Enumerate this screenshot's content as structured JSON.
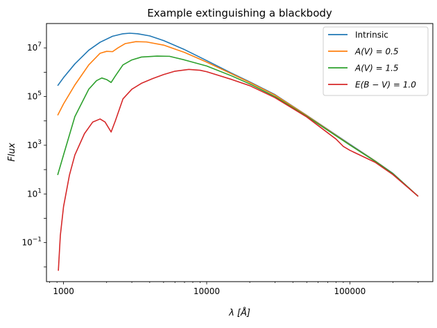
{
  "chart_data": {
    "type": "line",
    "title": "Example extinguishing a blackbody",
    "xlabel": "λ [Å]",
    "ylabel": "Flux",
    "xscale": "log",
    "yscale": "log",
    "xlim": [
      760,
      380000
    ],
    "ylim": [
      0.0025,
      100000000
    ],
    "grid": false,
    "legend_position": "top-right",
    "x_ticks": [
      {
        "value": 1000,
        "label": "1000"
      },
      {
        "value": 10000,
        "label": "10000"
      },
      {
        "value": 100000,
        "label": "100000"
      }
    ],
    "y_ticks": [
      {
        "value": 0.1,
        "base": "10",
        "exp": "−1"
      },
      {
        "value": 10,
        "base": "10",
        "exp": "1"
      },
      {
        "value": 1000,
        "base": "10",
        "exp": "3"
      },
      {
        "value": 100000,
        "base": "10",
        "exp": "5"
      },
      {
        "value": 10000000,
        "base": "10",
        "exp": "7"
      }
    ],
    "series": [
      {
        "name": "Intrinsic",
        "color": "#1f77b4",
        "points": [
          [
            910,
            280000
          ],
          [
            1000,
            600000
          ],
          [
            1200,
            2200000
          ],
          [
            1500,
            8000000
          ],
          [
            1800,
            17000000
          ],
          [
            2200,
            30000000
          ],
          [
            2600,
            38000000
          ],
          [
            2900,
            40000000
          ],
          [
            3300,
            38000000
          ],
          [
            4000,
            31000000
          ],
          [
            5000,
            20000000
          ],
          [
            7000,
            8500000
          ],
          [
            10000,
            3000000
          ],
          [
            15000,
            900000
          ],
          [
            20000,
            400000
          ],
          [
            30000,
            120000
          ],
          [
            50000,
            17000
          ],
          [
            100000,
            1100
          ],
          [
            150000,
            230
          ],
          [
            200000,
            70
          ],
          [
            300000,
            8
          ]
        ]
      },
      {
        "name": "A(V) = 0.5",
        "color": "#ff7f0e",
        "points": [
          [
            910,
            17000
          ],
          [
            1000,
            50000
          ],
          [
            1200,
            300000
          ],
          [
            1500,
            2000000
          ],
          [
            1800,
            6000000
          ],
          [
            2000,
            7200000
          ],
          [
            2200,
            7000000
          ],
          [
            2400,
            10000000
          ],
          [
            2700,
            15000000
          ],
          [
            3200,
            18000000
          ],
          [
            3800,
            17500000
          ],
          [
            5000,
            13000000
          ],
          [
            7000,
            6500000
          ],
          [
            10000,
            2600000
          ],
          [
            15000,
            850000
          ],
          [
            20000,
            380000
          ],
          [
            30000,
            115000
          ],
          [
            50000,
            16500
          ],
          [
            100000,
            1050
          ],
          [
            150000,
            225
          ],
          [
            200000,
            68
          ],
          [
            300000,
            8
          ]
        ]
      },
      {
        "name": "A(V) = 1.5",
        "color": "#2ca02c",
        "points": [
          [
            910,
            60
          ],
          [
            1000,
            400
          ],
          [
            1200,
            15000
          ],
          [
            1500,
            200000
          ],
          [
            1700,
            450000
          ],
          [
            1850,
            580000
          ],
          [
            2000,
            500000
          ],
          [
            2150,
            380000
          ],
          [
            2300,
            700000
          ],
          [
            2600,
            2000000
          ],
          [
            3000,
            3200000
          ],
          [
            3500,
            4200000
          ],
          [
            4500,
            4600000
          ],
          [
            5500,
            4500000
          ],
          [
            7000,
            3200000
          ],
          [
            10000,
            1800000
          ],
          [
            15000,
            700000
          ],
          [
            20000,
            330000
          ],
          [
            30000,
            100000
          ],
          [
            50000,
            15500
          ],
          [
            100000,
            1020
          ],
          [
            150000,
            220
          ],
          [
            200000,
            67
          ],
          [
            300000,
            8
          ]
        ]
      },
      {
        "name": "E(B − V) = 1.0",
        "color": "#d62728",
        "points": [
          [
            920,
            0.007
          ],
          [
            950,
            0.2
          ],
          [
            1000,
            3
          ],
          [
            1100,
            60
          ],
          [
            1200,
            400
          ],
          [
            1400,
            3000
          ],
          [
            1600,
            9000
          ],
          [
            1800,
            12000
          ],
          [
            1950,
            9000
          ],
          [
            2150,
            3500
          ],
          [
            2300,
            10000
          ],
          [
            2600,
            80000
          ],
          [
            3000,
            200000
          ],
          [
            3500,
            350000
          ],
          [
            4200,
            550000
          ],
          [
            5000,
            800000
          ],
          [
            6000,
            1100000
          ],
          [
            7500,
            1300000
          ],
          [
            9000,
            1200000
          ],
          [
            10000,
            1050000
          ],
          [
            15000,
            500000
          ],
          [
            20000,
            280000
          ],
          [
            30000,
            90000
          ],
          [
            50000,
            14500
          ],
          [
            80000,
            1800
          ],
          [
            90000,
            900
          ],
          [
            100000,
            620
          ],
          [
            150000,
            200
          ],
          [
            200000,
            62
          ],
          [
            300000,
            8
          ]
        ]
      }
    ]
  }
}
